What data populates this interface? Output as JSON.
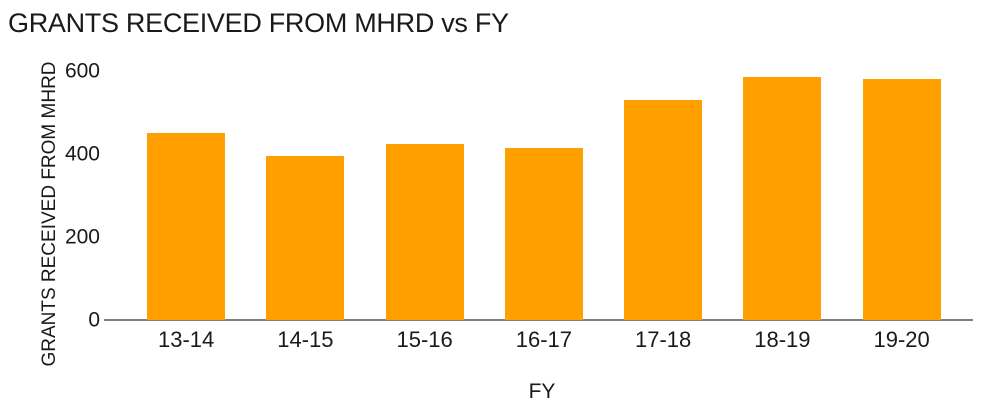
{
  "chart_data": {
    "type": "bar",
    "title": "GRANTS RECEIVED FROM MHRD vs FY",
    "xlabel": "FY",
    "ylabel": "GRANTS RECEIVED FROM MHRD",
    "categories": [
      "13-14",
      "14-15",
      "15-16",
      "16-17",
      "17-18",
      "18-19",
      "19-20"
    ],
    "values": [
      450,
      395,
      425,
      415,
      530,
      585,
      580
    ],
    "ylim": [
      0,
      600
    ],
    "yticks": [
      0,
      200,
      400,
      600
    ],
    "grid": false,
    "legend": false,
    "colors": {
      "bar": "#FFA000",
      "axis_line": "#7F7F7F",
      "text": "#1A1A1A",
      "background": "#FFFFFF"
    }
  }
}
